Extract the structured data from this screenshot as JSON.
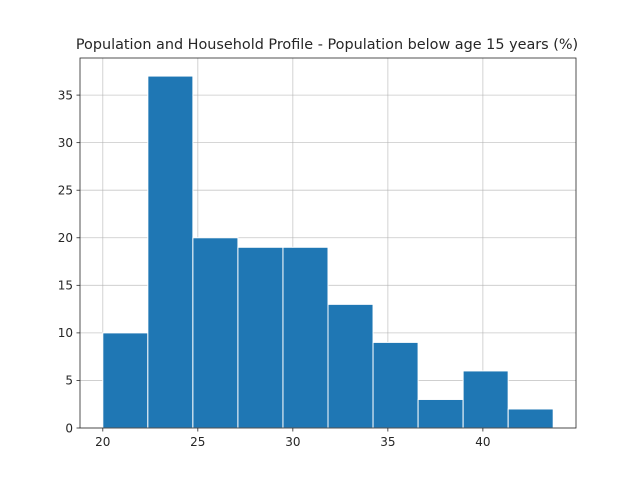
{
  "chart_data": {
    "type": "bar",
    "title": "Population and Household Profile - Population below age 15 years (%)",
    "xlabel": "",
    "ylabel": "",
    "bins": [
      {
        "x0": 20.0,
        "x1": 22.37,
        "count": 10
      },
      {
        "x0": 22.37,
        "x1": 24.74,
        "count": 37
      },
      {
        "x0": 24.74,
        "x1": 27.11,
        "count": 20
      },
      {
        "x0": 27.11,
        "x1": 29.48,
        "count": 19
      },
      {
        "x0": 29.48,
        "x1": 31.85,
        "count": 19
      },
      {
        "x0": 31.85,
        "x1": 34.22,
        "count": 13
      },
      {
        "x0": 34.22,
        "x1": 36.59,
        "count": 9
      },
      {
        "x0": 36.59,
        "x1": 38.96,
        "count": 3
      },
      {
        "x0": 38.96,
        "x1": 41.33,
        "count": 6
      },
      {
        "x0": 41.33,
        "x1": 43.7,
        "count": 2
      }
    ],
    "xlim": [
      18.8,
      44.9
    ],
    "ylim": [
      0,
      38.9
    ],
    "xticks": [
      20,
      25,
      30,
      35,
      40
    ],
    "yticks": [
      0,
      5,
      10,
      15,
      20,
      25,
      30,
      35
    ],
    "grid": true,
    "legend": "none",
    "color": "#1f77b4"
  }
}
